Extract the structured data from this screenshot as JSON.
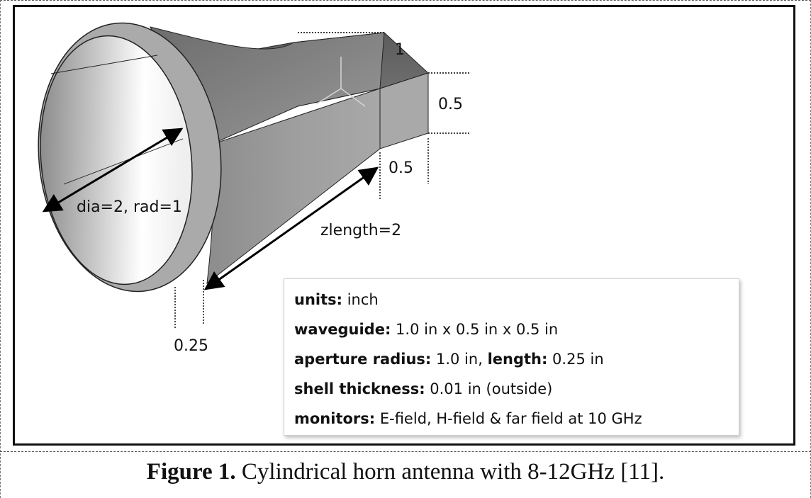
{
  "diagram": {
    "labels": {
      "waveguide_width": "1",
      "waveguide_height": "0.5",
      "waveguide_length": "0.5",
      "aperture": "dia=2, rad=1",
      "flare_length": "zlength=2",
      "aperture_length": "0.25"
    },
    "info": {
      "units_key": "units:",
      "units_value": " inch",
      "waveguide_key": "waveguide:",
      "waveguide_value": " 1.0 in x 0.5 in x 0.5 in",
      "aperture_key": "aperture radius:",
      "aperture_value": " 1.0 in, ",
      "length_key": "length:",
      "length_value": " 0.25 in",
      "shell_key": "shell thickness:",
      "shell_value": " 0.01 in (outside)",
      "monitors_key": "monitors:",
      "monitors_value": " E-field, H-field & far field at 10 GHz"
    }
  },
  "caption": {
    "number": "Figure 1.",
    "text": " Cylindrical horn antenna with 8-12GHz [11]."
  }
}
